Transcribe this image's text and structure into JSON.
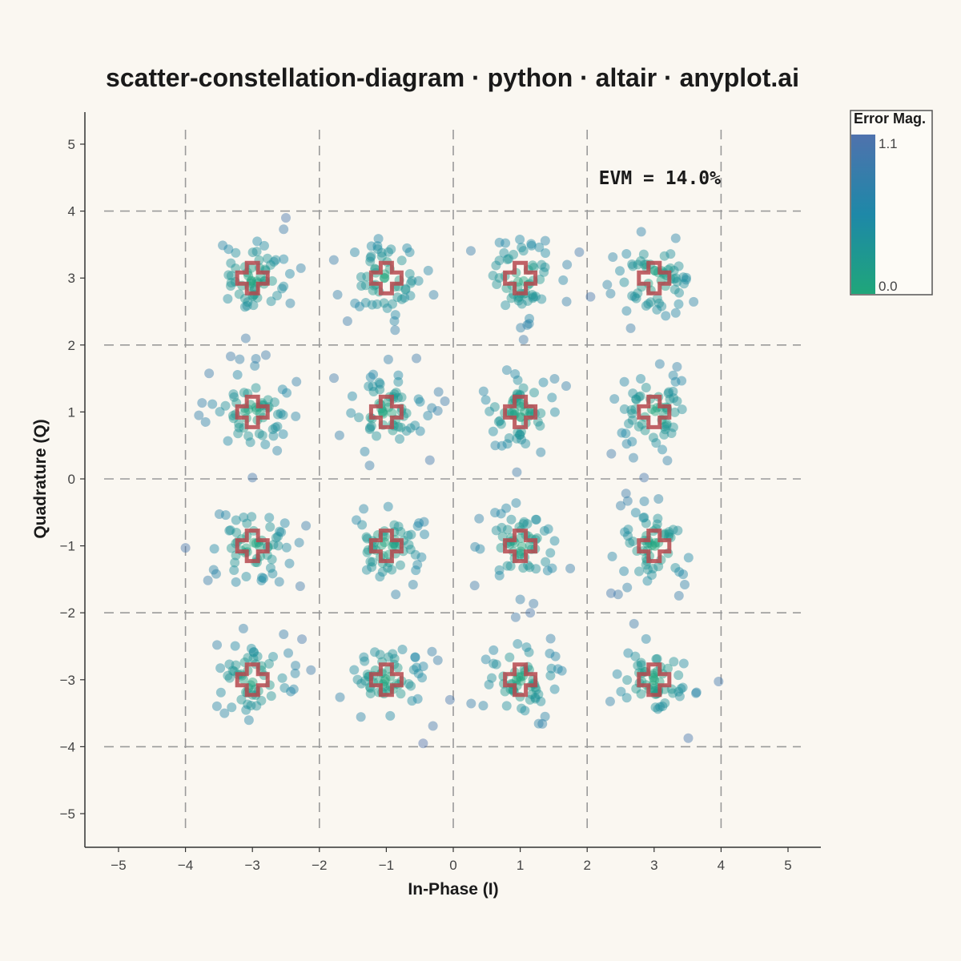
{
  "colors": {
    "background": "#faf7f1",
    "grid": "#9a9a9a",
    "ideal_marker": "#b5484d",
    "point_low_error": "#1fa67a",
    "point_mid_error": "#1e88a8",
    "point_high_error": "#4f72ad"
  },
  "chart_data": {
    "type": "scatter",
    "title": "scatter-constellation-diagram · python · altair · anyplot.ai",
    "xlabel": "In-Phase (I)",
    "ylabel": "Quadrature (Q)",
    "xlim": [
      -5.5,
      5.5
    ],
    "ylim": [
      -5.5,
      5.5
    ],
    "x_ticks": [
      -5,
      -4,
      -3,
      -2,
      -1,
      0,
      1,
      2,
      3,
      4,
      5
    ],
    "y_ticks": [
      -5,
      -4,
      -3,
      -2,
      -1,
      0,
      1,
      2,
      3,
      4,
      5
    ],
    "x_tick_labels": [
      "−5",
      "−4",
      "−3",
      "−2",
      "−1",
      "0",
      "1",
      "2",
      "3",
      "4",
      "5"
    ],
    "y_tick_labels": [
      "−5",
      "−4",
      "−3",
      "−2",
      "−1",
      "0",
      "1",
      "2",
      "3",
      "4",
      "5"
    ],
    "decision_boundaries": [
      -4,
      -2,
      0,
      2,
      4
    ],
    "annotation": "EVM = 14.0%",
    "ideal_points": [
      [
        -3,
        3
      ],
      [
        -1,
        3
      ],
      [
        1,
        3
      ],
      [
        3,
        3
      ],
      [
        -3,
        1
      ],
      [
        -1,
        1
      ],
      [
        1,
        1
      ],
      [
        3,
        1
      ],
      [
        -3,
        -1
      ],
      [
        -1,
        -1
      ],
      [
        1,
        -1
      ],
      [
        3,
        -1
      ],
      [
        -3,
        -3
      ],
      [
        -1,
        -3
      ],
      [
        1,
        -3
      ],
      [
        3,
        -3
      ]
    ],
    "received_points": {
      "count_per_symbol": 60,
      "noise_sigma": 0.3,
      "color_encoding": "error magnitude (distance from ideal point)"
    },
    "outlier_points": [
      [
        -2.5,
        3.9
      ],
      [
        -3.8,
        0.95
      ],
      [
        -3.7,
        0.85
      ],
      [
        -3.1,
        2.1
      ],
      [
        -2.8,
        1.85
      ],
      [
        -3.0,
        0.02
      ],
      [
        -4.0,
        -1.03
      ],
      [
        -2.2,
        -0.7
      ],
      [
        -1.25,
        0.2
      ],
      [
        -0.35,
        0.28
      ],
      [
        -0.55,
        1.8
      ],
      [
        -0.22,
        1.3
      ],
      [
        -0.45,
        -3.95
      ],
      [
        -0.05,
        -3.3
      ],
      [
        1.05,
        2.08
      ],
      [
        0.95,
        0.1
      ],
      [
        1.0,
        -1.8
      ],
      [
        1.15,
        -2.0
      ],
      [
        2.05,
        2.72
      ],
      [
        1.7,
        3.2
      ],
      [
        2.3,
        2.9
      ],
      [
        2.85,
        0.02
      ],
      [
        2.5,
        -0.4
      ],
      [
        -1.7,
        0.65
      ],
      [
        2.65,
        2.25
      ]
    ],
    "legend": {
      "title": "Error Mag.",
      "max_label": "1.1",
      "min_label": "0.0",
      "max_value": 1.1,
      "min_value": 0.0
    }
  }
}
